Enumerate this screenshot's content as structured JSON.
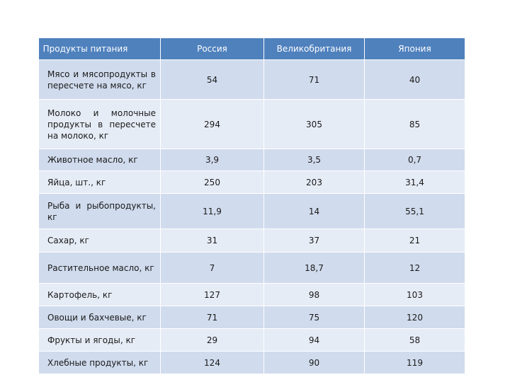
{
  "table": {
    "headers": [
      "Продукты питания",
      "Россия",
      "Великобритания",
      "Япония"
    ],
    "rows": [
      {
        "label": "Мясо и мясопродукты в пересчете на мясо, кг",
        "values": [
          "54",
          "71",
          "40"
        ]
      },
      {
        "label": "Молоко и молочные продукты в пересчете на молоко, кг",
        "values": [
          "294",
          "305",
          "85"
        ]
      },
      {
        "label": "Животное масло, кг",
        "values": [
          "3,9",
          "3,5",
          "0,7"
        ]
      },
      {
        "label": "Яйца, шт., кг",
        "values": [
          "250",
          "203",
          "31,4"
        ]
      },
      {
        "label": "Рыба и рыбопродукты, кг",
        "values": [
          "11,9",
          "14",
          "55,1"
        ]
      },
      {
        "label": "Сахар, кг",
        "values": [
          "31",
          "37",
          "21"
        ]
      },
      {
        "label": "Растительное масло, кг",
        "values": [
          "7",
          "18,7",
          "12"
        ]
      },
      {
        "label": "Картофель, кг",
        "values": [
          "127",
          "98",
          "103"
        ]
      },
      {
        "label": "Овощи и бахчевые, кг",
        "values": [
          "71",
          "75",
          "120"
        ]
      },
      {
        "label": "Фрукты и ягоды, кг",
        "values": [
          "29",
          "94",
          "58"
        ]
      },
      {
        "label": "Хлебные продукты, кг",
        "values": [
          "124",
          "90",
          "119"
        ]
      }
    ]
  },
  "colors": {
    "header_bg": "#4f81bd",
    "row_bg_odd": "#d0dbed",
    "row_bg_even": "#e6ecf6"
  }
}
